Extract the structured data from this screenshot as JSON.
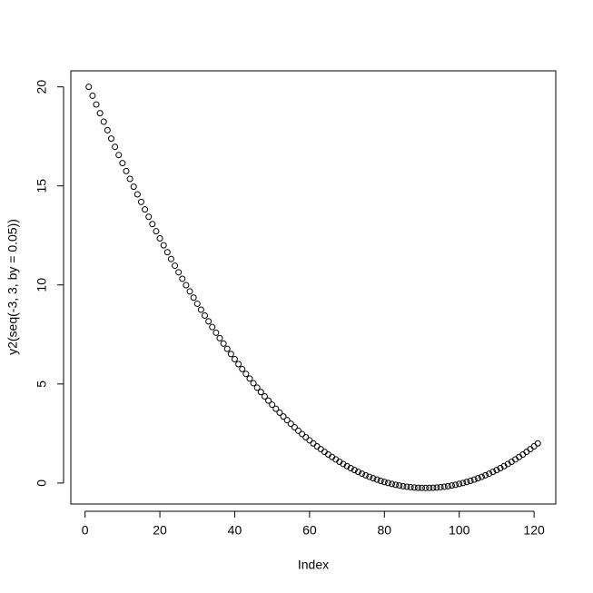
{
  "chart_data": {
    "type": "scatter",
    "x_label": "Index",
    "y_label": "y2(seq(-3, 3, by = 0.05))",
    "x": [
      1,
      2,
      3,
      4,
      5,
      6,
      7,
      8,
      9,
      10,
      11,
      12,
      13,
      14,
      15,
      16,
      17,
      18,
      19,
      20,
      21,
      22,
      23,
      24,
      25,
      26,
      27,
      28,
      29,
      30,
      31,
      32,
      33,
      34,
      35,
      36,
      37,
      38,
      39,
      40,
      41,
      42,
      43,
      44,
      45,
      46,
      47,
      48,
      49,
      50,
      51,
      52,
      53,
      54,
      55,
      56,
      57,
      58,
      59,
      60,
      61,
      62,
      63,
      64,
      65,
      66,
      67,
      68,
      69,
      70,
      71,
      72,
      73,
      74,
      75,
      76,
      77,
      78,
      79,
      80,
      81,
      82,
      83,
      84,
      85,
      86,
      87,
      88,
      89,
      90,
      91,
      92,
      93,
      94,
      95,
      96,
      97,
      98,
      99,
      100,
      101,
      102,
      103,
      104,
      105,
      106,
      107,
      108,
      109,
      110,
      111,
      112,
      113,
      114,
      115,
      116,
      117,
      118,
      119,
      120,
      121
    ],
    "values": [
      20,
      19.5525,
      19.11,
      18.6725,
      18.24,
      17.8125,
      17.39,
      16.9725,
      16.56,
      16.1525,
      15.75,
      15.3525,
      14.96,
      14.5725,
      14.19,
      13.8125,
      13.44,
      13.0725,
      12.71,
      12.3525,
      12,
      11.6525,
      11.31,
      10.9725,
      10.64,
      10.3125,
      9.99,
      9.6725,
      9.36,
      9.0525,
      8.75,
      8.4525,
      8.16,
      7.8725,
      7.59,
      7.3125,
      7.04,
      6.7725,
      6.51,
      6.2525,
      6,
      5.7525,
      5.51,
      5.2725,
      5.04,
      4.8125,
      4.59,
      4.3725,
      4.16,
      3.9525,
      3.75,
      3.5525,
      3.36,
      3.1725,
      2.99,
      2.8125,
      2.64,
      2.4725,
      2.31,
      2.1525,
      2,
      1.8525,
      1.71,
      1.5725,
      1.44,
      1.3125,
      1.19,
      1.0725,
      0.96,
      0.8525,
      0.75,
      0.6525,
      0.56,
      0.4725,
      0.39,
      0.3125,
      0.24,
      0.1725,
      0.11,
      0.0525,
      0,
      -0.0475,
      -0.09,
      -0.1275,
      -0.16,
      -0.1875,
      -0.21,
      -0.2275,
      -0.24,
      -0.2475,
      -0.25,
      -0.2475,
      -0.24,
      -0.2275,
      -0.21,
      -0.1875,
      -0.16,
      -0.1275,
      -0.09,
      -0.0475,
      0,
      0.0525,
      0.11,
      0.1725,
      0.24,
      0.3125,
      0.39,
      0.4725,
      0.56,
      0.6525,
      0.75,
      0.8525,
      0.96,
      1.0725,
      1.19,
      1.3125,
      1.44,
      1.5725,
      1.71,
      1.8525,
      2
    ],
    "color": "#000000",
    "xlim": [
      -3.8,
      125.8
    ],
    "xticks": [
      0,
      20,
      40,
      60,
      80,
      100,
      120
    ],
    "ylim": [
      -1.06,
      20.81
    ],
    "yticks": [
      0,
      5,
      10,
      15,
      20
    ]
  }
}
